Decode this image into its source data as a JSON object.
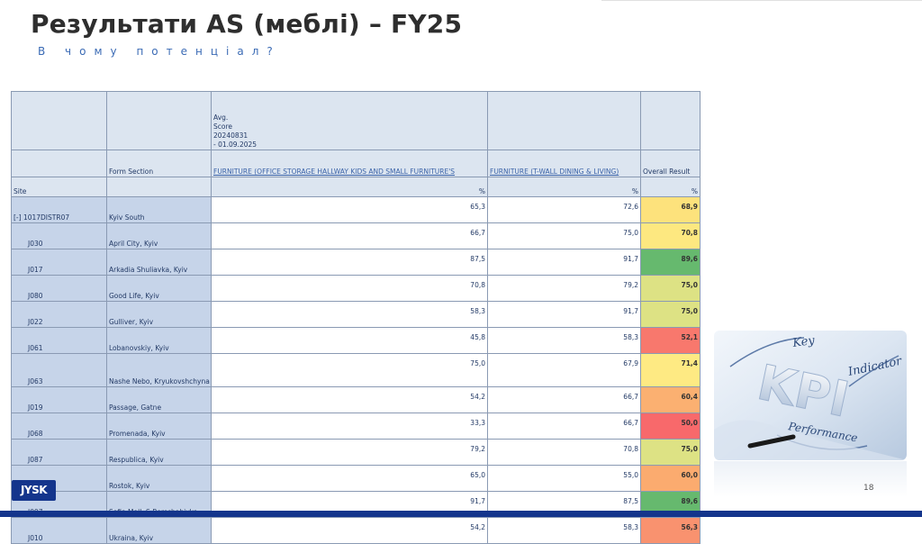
{
  "slide": {
    "title": "Результати AS (меблі) – FY25",
    "subtitle": "В чому потенціал?",
    "page_number": "18"
  },
  "report": {
    "header": {
      "avg_score": "Avg.",
      "score": "Score",
      "period_start": "20240831",
      "period_end": "- 01.09.2025",
      "form_section": "Form Section",
      "col_furniture_office": "FURNITURE (OFFICE STORAGE HALLWAY KIDS AND SMALL FURNITURE'S",
      "col_furniture_twall": "FURNITURE (T-WALL DINING & LIVING)",
      "col_overall": "Overall Result",
      "site": "Site",
      "pct": "%"
    },
    "rows": [
      {
        "code": "[-] 1017DISTR07",
        "name": "Kyiv South",
        "v1": "65,3",
        "v2": "72,6",
        "overall": "68,9",
        "color": "#fde27c"
      },
      {
        "code": "J030",
        "name": "April City, Kyiv",
        "v1": "66,7",
        "v2": "75,0",
        "overall": "70,8",
        "color": "#fde880"
      },
      {
        "code": "J017",
        "name": "Arkadia Shuliavka, Kyiv",
        "v1": "87,5",
        "v2": "91,7",
        "overall": "89,6",
        "color": "#66b96e"
      },
      {
        "code": "J080",
        "name": "Good Life, Kyiv",
        "v1": "70,8",
        "v2": "79,2",
        "overall": "75,0",
        "color": "#dde284"
      },
      {
        "code": "J022",
        "name": "Gulliver, Kyiv",
        "v1": "58,3",
        "v2": "91,7",
        "overall": "75,0",
        "color": "#dde284"
      },
      {
        "code": "J061",
        "name": "Lobanovskiy, Kyiv",
        "v1": "45,8",
        "v2": "58,3",
        "overall": "52,1",
        "color": "#f8786d"
      },
      {
        "code": "J063",
        "name": "Nashe Nebo, Kryukovshchyna",
        "v1": "75,0",
        "v2": "67,9",
        "overall": "71,4",
        "color": "#feea83"
      },
      {
        "code": "J019",
        "name": "Passage, Gatne",
        "v1": "54,2",
        "v2": "66,7",
        "overall": "60,4",
        "color": "#fbb071"
      },
      {
        "code": "J068",
        "name": "Promenada, Kyiv",
        "v1": "33,3",
        "v2": "66,7",
        "overall": "50,0",
        "color": "#f8696b"
      },
      {
        "code": "J087",
        "name": "Respublica, Kyiv",
        "v1": "79,2",
        "v2": "70,8",
        "overall": "75,0",
        "color": "#dde284"
      },
      {
        "code": "J099",
        "name": "Rostok, Kyiv",
        "v1": "65,0",
        "v2": "55,0",
        "overall": "60,0",
        "color": "#fbab6f"
      },
      {
        "code": "J097",
        "name": "Sofia Mall, S.Borschahivka",
        "v1": "91,7",
        "v2": "87,5",
        "overall": "89,6",
        "color": "#66b96e"
      },
      {
        "code": "J010",
        "name": "Ukraina, Kyiv",
        "v1": "54,2",
        "v2": "58,3",
        "overall": "56,3",
        "color": "#f9926f"
      }
    ]
  },
  "kpi_image": {
    "word_key": "Key",
    "word_indicator": "Indicator",
    "word_kpi": "KPI",
    "word_performance": "Performance"
  },
  "logo": {
    "text": "JYSK",
    "color": "#14358c"
  }
}
